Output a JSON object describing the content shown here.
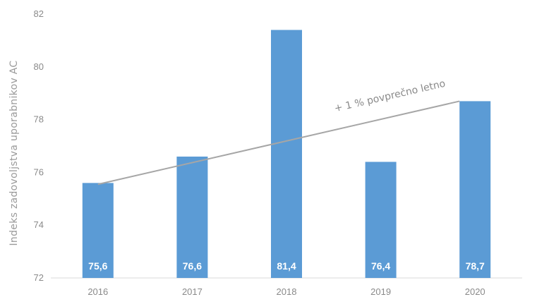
{
  "chart_data": {
    "type": "bar",
    "title": "",
    "xlabel": "",
    "ylabel": "Indeks zadovoljstva uporabnikov AC",
    "categories": [
      "2016",
      "2017",
      "2018",
      "2019",
      "2020"
    ],
    "values": [
      75.6,
      76.6,
      81.4,
      76.4,
      78.7
    ],
    "data_labels": [
      "75,6",
      "76,6",
      "81,4",
      "76,4",
      "78,7"
    ],
    "ylim": [
      72,
      82
    ],
    "yticks": [
      72,
      74,
      76,
      78,
      80,
      82
    ],
    "grid": false,
    "bar_color": "#5b9bd5",
    "trendline": {
      "start": {
        "x": "2016",
        "y": 75.55
      },
      "end": {
        "x": "2020",
        "y": 78.7
      },
      "color": "#a6a6a6",
      "annotation": "+ 1 % povprečno letno"
    }
  }
}
